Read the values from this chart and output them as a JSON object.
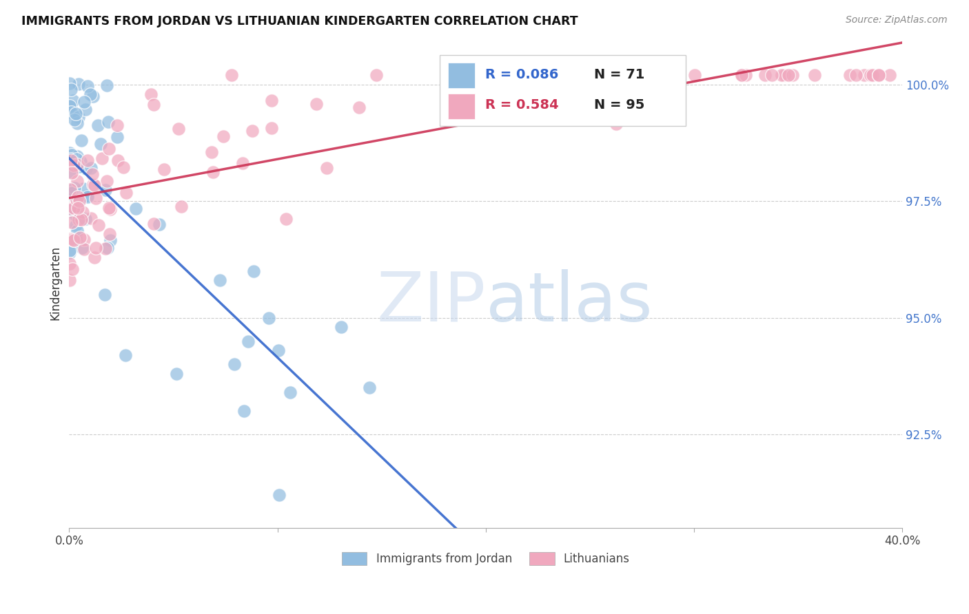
{
  "title": "IMMIGRANTS FROM JORDAN VS LITHUANIAN KINDERGARTEN CORRELATION CHART",
  "source": "Source: ZipAtlas.com",
  "ylabel": "Kindergarten",
  "ytick_labels": [
    "92.5%",
    "95.0%",
    "97.5%",
    "100.0%"
  ],
  "ytick_values": [
    0.925,
    0.95,
    0.975,
    1.0
  ],
  "xlim": [
    0.0,
    0.4
  ],
  "ylim": [
    0.905,
    1.01
  ],
  "blue_R": 0.086,
  "blue_N": 71,
  "pink_R": 0.584,
  "pink_N": 95,
  "blue_color": "#92bde0",
  "pink_color": "#f0a8be",
  "blue_line_color": "#3366cc",
  "pink_line_color": "#cc3355",
  "legend_label_blue": "Immigrants from Jordan",
  "legend_label_pink": "Lithuanians",
  "watermark_zip": "ZIP",
  "watermark_atlas": "atlas",
  "blue_seed": 12,
  "pink_seed": 34
}
